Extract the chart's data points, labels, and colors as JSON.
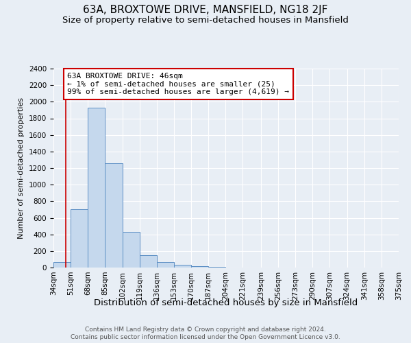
{
  "title": "63A, BROXTOWE DRIVE, MANSFIELD, NG18 2JF",
  "subtitle": "Size of property relative to semi-detached houses in Mansfield",
  "xlabel": "Distribution of semi-detached houses by size in Mansfield",
  "ylabel": "Number of semi-detached properties",
  "footer_line1": "Contains HM Land Registry data © Crown copyright and database right 2024.",
  "footer_line2": "Contains public sector information licensed under the Open Government Licence v3.0.",
  "bar_edges": [
    34,
    51,
    68,
    85,
    102,
    119,
    136,
    153,
    170,
    187,
    204,
    221,
    239,
    256,
    273,
    290,
    307,
    324,
    341,
    358,
    375
  ],
  "bar_heights": [
    65,
    700,
    1930,
    1260,
    430,
    150,
    65,
    35,
    20,
    10,
    0,
    0,
    0,
    0,
    0,
    0,
    0,
    0,
    0,
    0
  ],
  "bar_color": "#c5d8ed",
  "bar_edge_color": "#5b8ec4",
  "property_size": 46,
  "vline_x": 46,
  "vline_color": "#cc0000",
  "annotation_line1": "63A BROXTOWE DRIVE: 46sqm",
  "annotation_line2": "← 1% of semi-detached houses are smaller (25)",
  "annotation_line3": "99% of semi-detached houses are larger (4,619) →",
  "annotation_box_color": "white",
  "annotation_box_edge_color": "#cc0000",
  "ylim": [
    0,
    2400
  ],
  "yticks": [
    0,
    200,
    400,
    600,
    800,
    1000,
    1200,
    1400,
    1600,
    1800,
    2000,
    2200,
    2400
  ],
  "background_color": "#e8eef5",
  "plot_bg_color": "#e8eef5",
  "grid_color": "white",
  "title_fontsize": 11,
  "subtitle_fontsize": 9.5,
  "xlabel_fontsize": 9.5,
  "ylabel_fontsize": 8,
  "tick_fontsize": 7.5,
  "annotation_fontsize": 8,
  "footer_fontsize": 6.5
}
